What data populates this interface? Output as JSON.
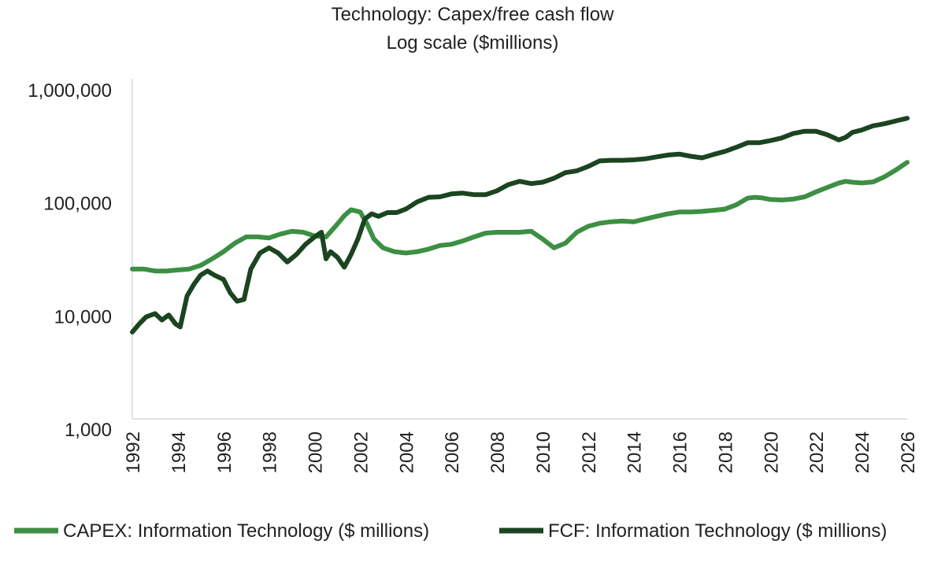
{
  "chart_data": {
    "type": "line",
    "title": "Technology: Capex/free cash flow",
    "subtitle": "Log scale ($millions)",
    "xlabel": "",
    "ylabel": "",
    "y_scale": "log",
    "ylim": [
      1000,
      1000000
    ],
    "xlim": [
      1992,
      2026
    ],
    "y_ticks": [
      1000,
      10000,
      100000,
      1000000
    ],
    "y_tick_labels": [
      "1,000",
      "10,000",
      "100,000",
      "1,000,000"
    ],
    "x_ticks": [
      1992,
      1994,
      1996,
      1998,
      2000,
      2002,
      2004,
      2006,
      2008,
      2010,
      2012,
      2014,
      2016,
      2018,
      2020,
      2022,
      2024,
      2026
    ],
    "x_tick_labels": [
      "1992",
      "1994",
      "1996",
      "1998",
      "2000",
      "2002",
      "2004",
      "2006",
      "2008",
      "2010",
      "2012",
      "2014",
      "2016",
      "2018",
      "2020",
      "2022",
      "2024",
      "2026"
    ],
    "grid": false,
    "legend_position": "bottom",
    "series": [
      {
        "name": "CAPEX: Information Technology ($ millions)",
        "color": "#3c8f43",
        "x": [
          1992.0,
          1992.5,
          1993.0,
          1993.5,
          1994.0,
          1994.5,
          1995.0,
          1995.5,
          1996.0,
          1996.5,
          1997.0,
          1997.5,
          1998.0,
          1998.5,
          1999.0,
          1999.5,
          2000.0,
          2000.5,
          2001.0,
          2001.3,
          2001.6,
          2002.0,
          2002.3,
          2002.6,
          2003.0,
          2003.5,
          2004.0,
          2004.5,
          2005.0,
          2005.5,
          2006.0,
          2006.5,
          2007.0,
          2007.5,
          2008.0,
          2008.5,
          2009.0,
          2009.5,
          2010.0,
          2010.5,
          2011.0,
          2011.5,
          2012.0,
          2012.5,
          2013.0,
          2013.5,
          2014.0,
          2014.5,
          2015.0,
          2015.5,
          2016.0,
          2016.5,
          2017.0,
          2017.5,
          2018.0,
          2018.5,
          2019.0,
          2019.3,
          2019.6,
          2020.0,
          2020.5,
          2021.0,
          2021.5,
          2022.0,
          2022.5,
          2023.0,
          2023.3,
          2023.6,
          2024.0,
          2024.5,
          2025.0,
          2025.5,
          2026.0
        ],
        "values": [
          26000,
          26000,
          25000,
          25000,
          25500,
          26000,
          28000,
          32000,
          37000,
          44000,
          50000,
          50000,
          49000,
          53000,
          56000,
          55000,
          51000,
          50000,
          65000,
          77000,
          87000,
          83000,
          65000,
          48000,
          40000,
          37000,
          36000,
          37000,
          39000,
          42000,
          43000,
          46000,
          50000,
          54000,
          55000,
          55000,
          55000,
          56000,
          48000,
          40000,
          44000,
          55000,
          62000,
          66000,
          68000,
          69000,
          68000,
          72000,
          76000,
          80000,
          83000,
          83000,
          84000,
          86000,
          88000,
          96000,
          110000,
          112000,
          111000,
          107000,
          106000,
          108000,
          113000,
          125000,
          137000,
          150000,
          155000,
          152000,
          150000,
          153000,
          170000,
          195000,
          228000
        ]
      },
      {
        "name": "FCF: Information Technology ($ millions)",
        "color": "#1b4420",
        "x": [
          1992.0,
          1992.3,
          1992.6,
          1993.0,
          1993.3,
          1993.6,
          1993.9,
          1994.1,
          1994.4,
          1994.7,
          1995.0,
          1995.3,
          1995.6,
          1996.0,
          1996.3,
          1996.6,
          1996.9,
          1997.2,
          1997.6,
          1998.0,
          1998.4,
          1998.8,
          1999.2,
          1999.6,
          2000.0,
          2000.3,
          2000.5,
          2000.7,
          2001.0,
          2001.3,
          2001.6,
          2001.9,
          2002.2,
          2002.5,
          2002.8,
          2003.2,
          2003.6,
          2004.0,
          2004.5,
          2005.0,
          2005.5,
          2006.0,
          2006.5,
          2007.0,
          2007.5,
          2008.0,
          2008.5,
          2009.0,
          2009.5,
          2010.0,
          2010.5,
          2011.0,
          2011.5,
          2012.0,
          2012.5,
          2013.0,
          2013.5,
          2014.0,
          2014.5,
          2015.0,
          2015.5,
          2016.0,
          2016.5,
          2017.0,
          2017.5,
          2018.0,
          2018.5,
          2019.0,
          2019.5,
          2020.0,
          2020.5,
          2021.0,
          2021.5,
          2022.0,
          2022.5,
          2023.0,
          2023.3,
          2023.6,
          2024.0,
          2024.5,
          2025.0,
          2025.5,
          2026.0
        ],
        "values": [
          7200,
          8500,
          9800,
          10500,
          9200,
          10200,
          8500,
          8000,
          15000,
          19000,
          23000,
          25000,
          23000,
          21000,
          16000,
          13500,
          14000,
          26000,
          36000,
          40000,
          36000,
          30000,
          35000,
          43000,
          50000,
          55000,
          32000,
          37000,
          33000,
          27000,
          35000,
          48000,
          72000,
          80000,
          76000,
          82000,
          82000,
          88000,
          102000,
          112000,
          113000,
          120000,
          122000,
          118000,
          118000,
          128000,
          145000,
          155000,
          148000,
          152000,
          165000,
          185000,
          192000,
          210000,
          235000,
          238000,
          238000,
          240000,
          245000,
          255000,
          265000,
          270000,
          258000,
          250000,
          268000,
          285000,
          310000,
          340000,
          340000,
          355000,
          375000,
          410000,
          430000,
          430000,
          400000,
          360000,
          380000,
          420000,
          440000,
          480000,
          500000,
          530000,
          560000
        ]
      }
    ]
  }
}
